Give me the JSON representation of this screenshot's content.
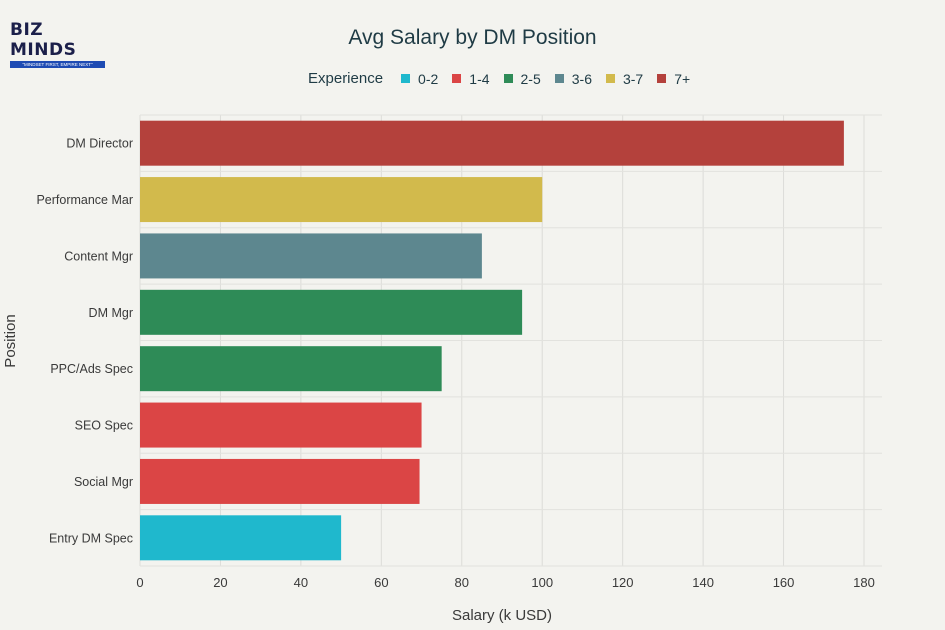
{
  "logo": {
    "text": "BIZ MINDS",
    "tagline": "\"MINDSET FIRST, EMPIRE NEXT\""
  },
  "chart_data": {
    "type": "bar",
    "orientation": "horizontal",
    "title": "Avg Salary by DM Position",
    "xlabel": "Salary (k USD)",
    "ylabel": "Position",
    "xlim": [
      0,
      180
    ],
    "xticks": [
      0,
      20,
      40,
      60,
      80,
      100,
      120,
      140,
      160,
      180
    ],
    "grid": true,
    "legend": {
      "title": "Experience",
      "placement": "top",
      "entries": [
        {
          "name": "0-2",
          "color": "#1fb8cd"
        },
        {
          "name": "1-4",
          "color": "#db4545"
        },
        {
          "name": "2-5",
          "color": "#2e8b57"
        },
        {
          "name": "3-6",
          "color": "#5d878f"
        },
        {
          "name": "3-7",
          "color": "#d2ba4c"
        },
        {
          "name": "7+",
          "color": "#b4413c"
        }
      ]
    },
    "categories": [
      "DM Director",
      "Performance Mar",
      "Content Mgr",
      "DM Mgr",
      "PPC/Ads Spec",
      "SEO Spec",
      "Social Mgr",
      "Entry DM Spec"
    ],
    "values": [
      175,
      100,
      85,
      95,
      75,
      70,
      69.5,
      50
    ],
    "experience": [
      "7+",
      "3-7",
      "3-6",
      "2-5",
      "2-5",
      "1-4",
      "1-4",
      "0-2"
    ]
  }
}
